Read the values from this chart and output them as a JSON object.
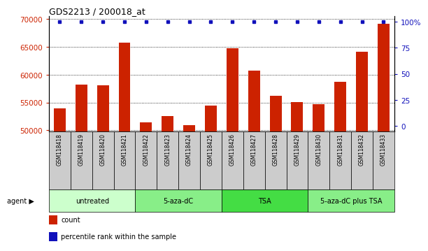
{
  "title": "GDS2213 / 200018_at",
  "samples": [
    "GSM118418",
    "GSM118419",
    "GSM118420",
    "GSM118421",
    "GSM118422",
    "GSM118423",
    "GSM118424",
    "GSM118425",
    "GSM118426",
    "GSM118427",
    "GSM118428",
    "GSM118429",
    "GSM118430",
    "GSM118431",
    "GSM118432",
    "GSM118433"
  ],
  "counts": [
    54000,
    58200,
    58100,
    65700,
    51400,
    52500,
    50900,
    54500,
    64800,
    60700,
    56200,
    55100,
    54700,
    58700,
    64100,
    69200
  ],
  "percentile": [
    100,
    100,
    100,
    100,
    100,
    100,
    100,
    100,
    100,
    100,
    100,
    100,
    100,
    100,
    100,
    100
  ],
  "bar_color": "#CC2200",
  "percentile_color": "#1111BB",
  "ylim_left": [
    49800,
    70500
  ],
  "ylim_right": [
    -5,
    105
  ],
  "yticks_left": [
    50000,
    55000,
    60000,
    65000,
    70000
  ],
  "yticks_right": [
    0,
    25,
    50,
    75,
    100
  ],
  "groups": [
    {
      "label": "untreated",
      "start": 0,
      "end": 4,
      "color": "#CCFFCC"
    },
    {
      "label": "5-aza-dC",
      "start": 4,
      "end": 8,
      "color": "#88EE88"
    },
    {
      "label": "TSA",
      "start": 8,
      "end": 12,
      "color": "#44DD44"
    },
    {
      "label": "5-aza-dC plus TSA",
      "start": 12,
      "end": 16,
      "color": "#88EE88"
    }
  ],
  "agent_label": "agent",
  "legend_count_label": "count",
  "legend_percentile_label": "percentile rank within the sample",
  "tick_color_left": "#CC2200",
  "tick_color_right": "#1111BB",
  "grid_color": "#000000",
  "xticklabel_bg": "#CCCCCC"
}
